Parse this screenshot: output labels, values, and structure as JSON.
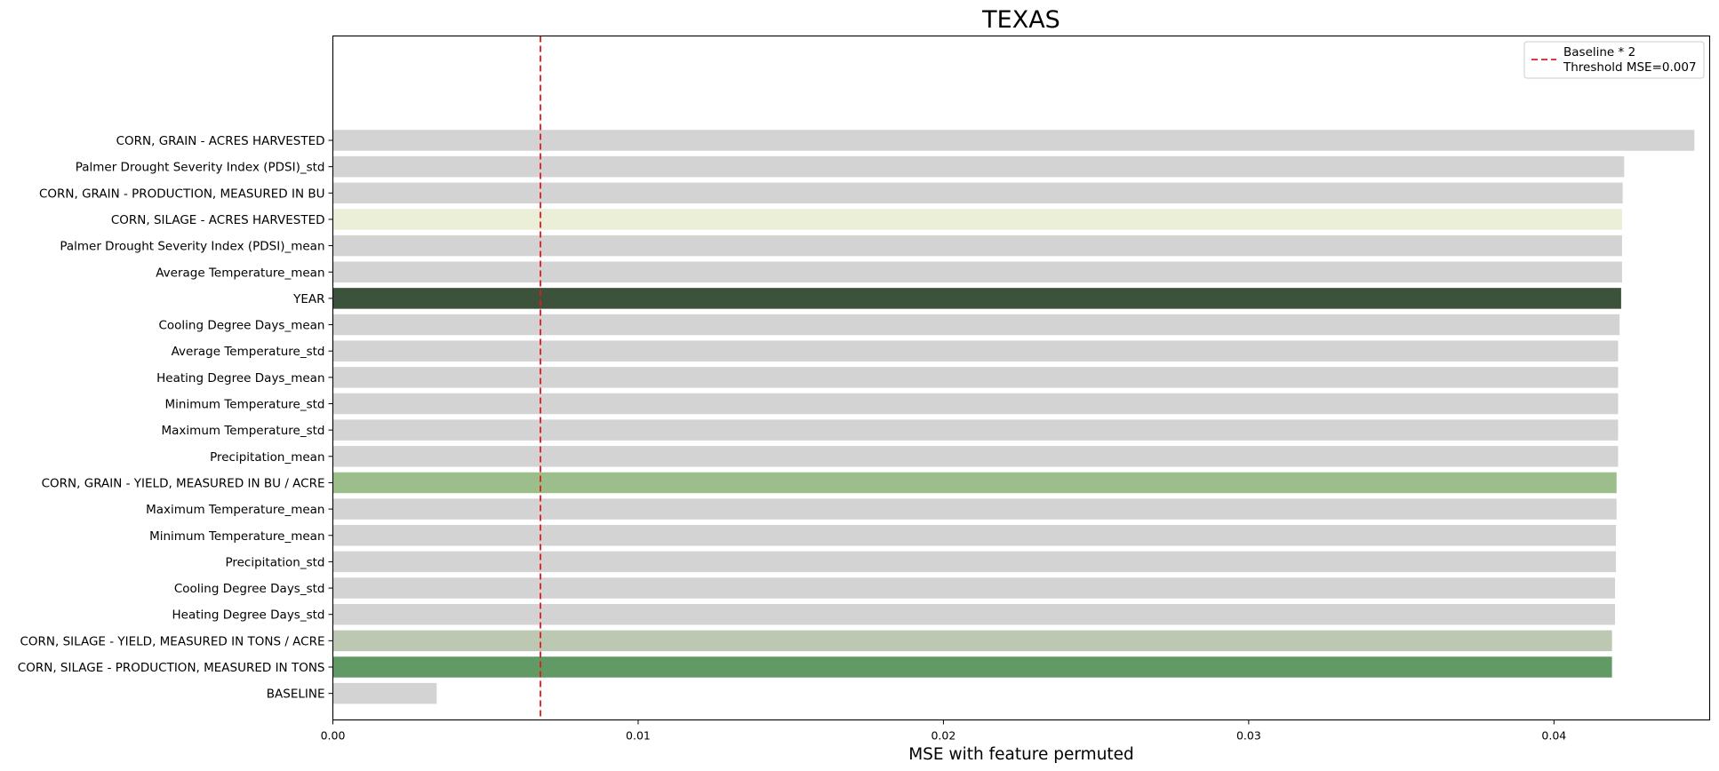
{
  "chart_data": {
    "type": "bar",
    "orientation": "horizontal",
    "title": "TEXAS",
    "xlabel": "MSE with feature permuted",
    "ylabel": "",
    "xlim": [
      0.0,
      0.0451
    ],
    "xticks": [
      0.0,
      0.01,
      0.02,
      0.03,
      0.04
    ],
    "xtick_labels": [
      "0.00",
      "0.01",
      "0.02",
      "0.03",
      "0.04"
    ],
    "grid": false,
    "legend_position": "top-right",
    "threshold": {
      "value": 0.0068,
      "color": "#e41a1c",
      "style": "dashed",
      "label_lines": [
        "Baseline * 2",
        "Threshold MSE=0.007"
      ]
    },
    "bars": [
      {
        "label": "CORN, GRAIN - ACRES HARVESTED",
        "value": 0.0446,
        "color": "#d3d3d3"
      },
      {
        "label": "Palmer Drought Severity Index (PDSI)_std",
        "value": 0.0423,
        "color": "#d3d3d3"
      },
      {
        "label": "CORN, GRAIN - PRODUCTION, MEASURED IN BU",
        "value": 0.04225,
        "color": "#d3d3d3"
      },
      {
        "label": "CORN, SILAGE - ACRES HARVESTED",
        "value": 0.04223,
        "color": "#ebefd8"
      },
      {
        "label": "Palmer Drought Severity Index (PDSI)_mean",
        "value": 0.04223,
        "color": "#d3d3d3"
      },
      {
        "label": "Average Temperature_mean",
        "value": 0.04223,
        "color": "#d3d3d3"
      },
      {
        "label": "YEAR",
        "value": 0.0422,
        "color": "#3d523b"
      },
      {
        "label": "Cooling Degree Days_mean",
        "value": 0.04215,
        "color": "#d3d3d3"
      },
      {
        "label": "Average Temperature_std",
        "value": 0.0421,
        "color": "#d3d3d3"
      },
      {
        "label": "Heating Degree Days_mean",
        "value": 0.0421,
        "color": "#d3d3d3"
      },
      {
        "label": "Minimum Temperature_std",
        "value": 0.0421,
        "color": "#d3d3d3"
      },
      {
        "label": "Maximum Temperature_std",
        "value": 0.0421,
        "color": "#d3d3d3"
      },
      {
        "label": "Precipitation_mean",
        "value": 0.0421,
        "color": "#d3d3d3"
      },
      {
        "label": "CORN, GRAIN - YIELD, MEASURED IN BU / ACRE",
        "value": 0.04205,
        "color": "#9cbe8a"
      },
      {
        "label": "Maximum Temperature_mean",
        "value": 0.04205,
        "color": "#d3d3d3"
      },
      {
        "label": "Minimum Temperature_mean",
        "value": 0.04203,
        "color": "#d3d3d3"
      },
      {
        "label": "Precipitation_std",
        "value": 0.04203,
        "color": "#d3d3d3"
      },
      {
        "label": "Cooling Degree Days_std",
        "value": 0.042,
        "color": "#d3d3d3"
      },
      {
        "label": "Heating Degree Days_std",
        "value": 0.042,
        "color": "#d3d3d3"
      },
      {
        "label": "CORN, SILAGE - YIELD, MEASURED IN TONS / ACRE",
        "value": 0.0419,
        "color": "#bdc8b2"
      },
      {
        "label": "CORN, SILAGE - PRODUCTION, MEASURED IN TONS",
        "value": 0.0419,
        "color": "#619a65"
      },
      {
        "label": "BASELINE",
        "value": 0.0034,
        "color": "#d3d3d3"
      }
    ]
  }
}
